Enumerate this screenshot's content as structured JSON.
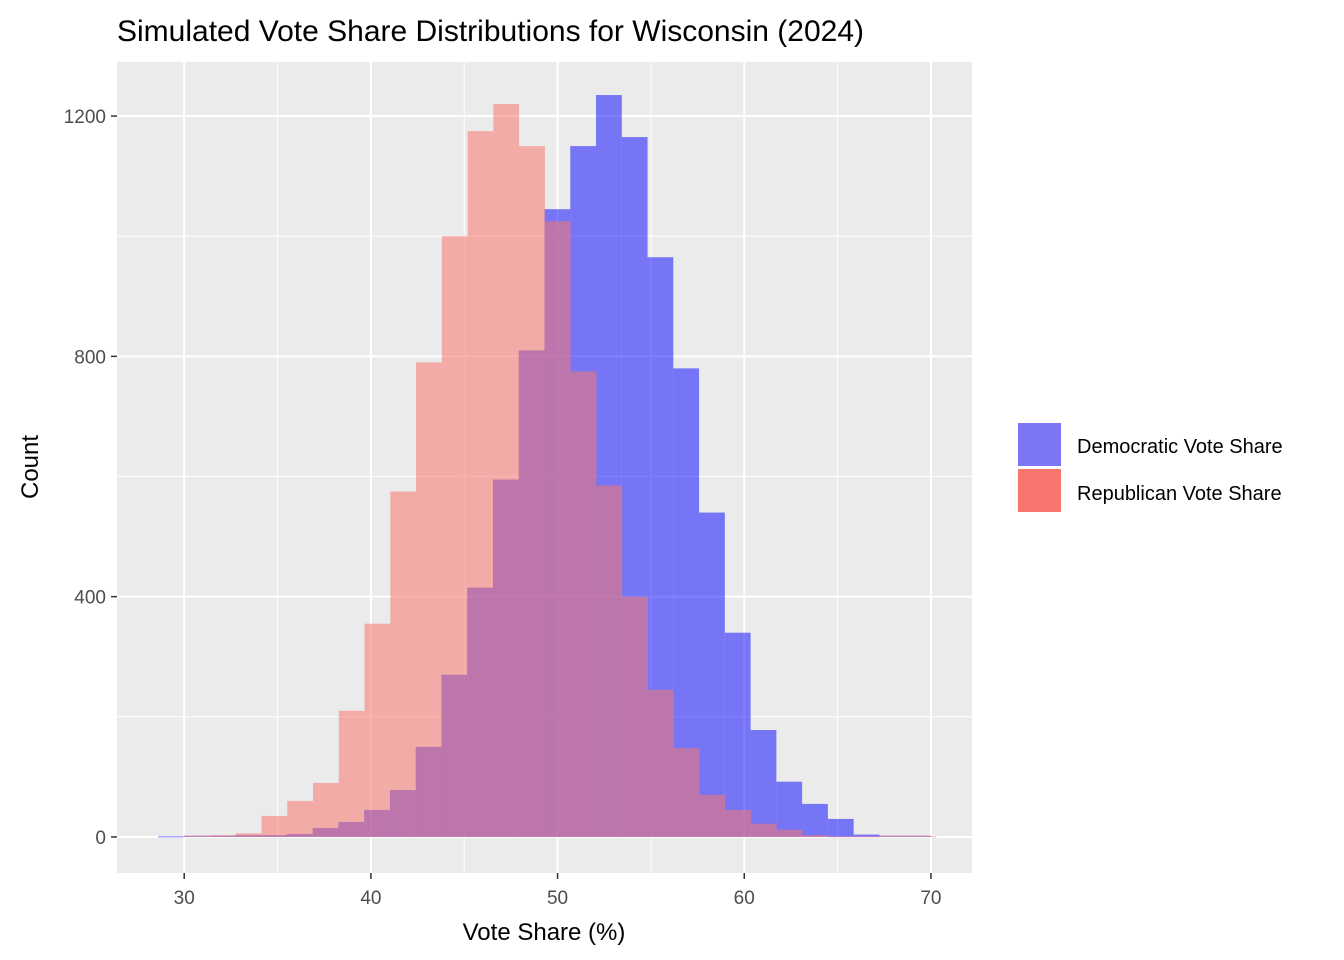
{
  "chart_data": {
    "type": "histogram",
    "title": "Simulated Vote Share Distributions for Wisconsin (2024)",
    "xlabel": "Vote Share (%)",
    "ylabel": "Count",
    "xlim": [
      26.4,
      72.2
    ],
    "ylim": [
      -60,
      1290
    ],
    "x_ticks": [
      30,
      40,
      50,
      60,
      70
    ],
    "y_ticks": [
      0,
      400,
      800,
      1200
    ],
    "grid": true,
    "legend_position": "right",
    "bin_width": 1.38,
    "series": [
      {
        "name": "Democratic Vote Share",
        "color": "#0000FF",
        "opacity": 0.5,
        "bins": [
          {
            "x0": 28.6,
            "x1": 29.98,
            "count": 1
          },
          {
            "x0": 29.98,
            "x1": 31.36,
            "count": 2
          },
          {
            "x0": 31.36,
            "x1": 32.74,
            "count": 2
          },
          {
            "x0": 32.74,
            "x1": 34.12,
            "count": 3
          },
          {
            "x0": 34.12,
            "x1": 35.5,
            "count": 3
          },
          {
            "x0": 35.5,
            "x1": 36.88,
            "count": 5
          },
          {
            "x0": 36.88,
            "x1": 38.26,
            "count": 15
          },
          {
            "x0": 38.26,
            "x1": 39.64,
            "count": 25
          },
          {
            "x0": 39.64,
            "x1": 41.02,
            "count": 45
          },
          {
            "x0": 41.02,
            "x1": 42.4,
            "count": 78
          },
          {
            "x0": 42.4,
            "x1": 43.78,
            "count": 150
          },
          {
            "x0": 43.78,
            "x1": 45.16,
            "count": 270
          },
          {
            "x0": 45.16,
            "x1": 46.54,
            "count": 415
          },
          {
            "x0": 46.54,
            "x1": 47.92,
            "count": 595
          },
          {
            "x0": 47.92,
            "x1": 49.3,
            "count": 810
          },
          {
            "x0": 49.3,
            "x1": 50.68,
            "count": 1045
          },
          {
            "x0": 50.68,
            "x1": 52.06,
            "count": 1150
          },
          {
            "x0": 52.06,
            "x1": 53.44,
            "count": 1235
          },
          {
            "x0": 53.44,
            "x1": 54.82,
            "count": 1165
          },
          {
            "x0": 54.82,
            "x1": 56.2,
            "count": 965
          },
          {
            "x0": 56.2,
            "x1": 57.58,
            "count": 780
          },
          {
            "x0": 57.58,
            "x1": 58.96,
            "count": 540
          },
          {
            "x0": 58.96,
            "x1": 60.34,
            "count": 340
          },
          {
            "x0": 60.34,
            "x1": 61.72,
            "count": 178
          },
          {
            "x0": 61.72,
            "x1": 63.1,
            "count": 92
          },
          {
            "x0": 63.1,
            "x1": 64.48,
            "count": 55
          },
          {
            "x0": 64.48,
            "x1": 65.86,
            "count": 30
          },
          {
            "x0": 65.86,
            "x1": 67.24,
            "count": 4
          },
          {
            "x0": 67.24,
            "x1": 68.62,
            "count": 2
          },
          {
            "x0": 68.62,
            "x1": 70.0,
            "count": 2
          }
        ]
      },
      {
        "name": "Republican Vote Share",
        "color": "#F8766D",
        "opacity": 1,
        "bins": [
          {
            "x0": 30.0,
            "x1": 31.38,
            "count": 2
          },
          {
            "x0": 31.38,
            "x1": 32.76,
            "count": 3
          },
          {
            "x0": 32.76,
            "x1": 34.14,
            "count": 6
          },
          {
            "x0": 34.14,
            "x1": 35.52,
            "count": 35
          },
          {
            "x0": 35.52,
            "x1": 36.9,
            "count": 60
          },
          {
            "x0": 36.9,
            "x1": 38.28,
            "count": 90
          },
          {
            "x0": 38.28,
            "x1": 39.66,
            "count": 210
          },
          {
            "x0": 39.66,
            "x1": 41.04,
            "count": 355
          },
          {
            "x0": 41.04,
            "x1": 42.42,
            "count": 575
          },
          {
            "x0": 42.42,
            "x1": 43.8,
            "count": 790
          },
          {
            "x0": 43.8,
            "x1": 45.18,
            "count": 1000
          },
          {
            "x0": 45.18,
            "x1": 46.56,
            "count": 1175
          },
          {
            "x0": 46.56,
            "x1": 47.94,
            "count": 1220
          },
          {
            "x0": 47.94,
            "x1": 49.32,
            "count": 1150
          },
          {
            "x0": 49.32,
            "x1": 50.7,
            "count": 1025
          },
          {
            "x0": 50.7,
            "x1": 52.08,
            "count": 775
          },
          {
            "x0": 52.08,
            "x1": 53.46,
            "count": 585
          },
          {
            "x0": 53.46,
            "x1": 54.84,
            "count": 400
          },
          {
            "x0": 54.84,
            "x1": 56.22,
            "count": 245
          },
          {
            "x0": 56.22,
            "x1": 57.6,
            "count": 148
          },
          {
            "x0": 57.6,
            "x1": 58.98,
            "count": 70
          },
          {
            "x0": 58.98,
            "x1": 60.36,
            "count": 45
          },
          {
            "x0": 60.36,
            "x1": 61.74,
            "count": 22
          },
          {
            "x0": 61.74,
            "x1": 63.12,
            "count": 12
          },
          {
            "x0": 63.12,
            "x1": 64.5,
            "count": 3
          },
          {
            "x0": 64.5,
            "x1": 65.88,
            "count": 1
          },
          {
            "x0": 65.88,
            "x1": 67.26,
            "count": 1
          },
          {
            "x0": 67.26,
            "x1": 68.64,
            "count": 2
          },
          {
            "x0": 68.64,
            "x1": 70.02,
            "count": 2
          },
          {
            "x0": 70.02,
            "x1": 70.3,
            "count": 1
          }
        ]
      }
    ]
  }
}
